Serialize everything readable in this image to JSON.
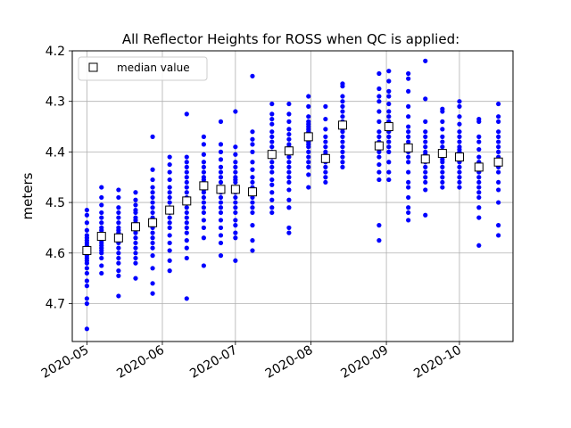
{
  "chart_data": {
    "type": "scatter",
    "title": "All Reflector Heights for ROSS when QC is applied:",
    "ylabel": "meters",
    "xlabel": "",
    "x_range": [
      "2020-04-25",
      "2020-10-23"
    ],
    "ylim": [
      4.2,
      4.775
    ],
    "y_inverted": true,
    "y_ticks": [
      4.2,
      4.3,
      4.4,
      4.5,
      4.6,
      4.7
    ],
    "y_tick_labels": [
      "4.2",
      "4.3",
      "4.4",
      "4.5",
      "4.6",
      "4.7"
    ],
    "x_ticks": [
      "2020-05-01",
      "2020-06-01",
      "2020-07-01",
      "2020-08-01",
      "2020-09-01",
      "2020-10-01"
    ],
    "x_tick_labels": [
      "2020-05",
      "2020-06",
      "2020-07",
      "2020-08",
      "2020-09",
      "2020-10"
    ],
    "grid": true,
    "legend": {
      "placement": "top-left",
      "entries": [
        {
          "label": "median value",
          "marker": "open-square"
        }
      ]
    },
    "colors": {
      "points": "#0000ff",
      "median_marker_edge": "#000000",
      "median_marker_fill": "#ffffff",
      "grid": "#b0b0b0"
    },
    "groups": [
      {
        "date": "2020-05-01",
        "median": 4.595,
        "points": [
          4.515,
          4.525,
          4.54,
          4.555,
          4.565,
          4.57,
          4.575,
          4.58,
          4.585,
          4.59,
          4.595,
          4.6,
          4.605,
          4.61,
          4.615,
          4.62,
          4.63,
          4.64,
          4.655,
          4.665,
          4.69,
          4.7,
          4.75
        ]
      },
      {
        "date": "2020-05-07",
        "median": 4.567,
        "points": [
          4.47,
          4.49,
          4.505,
          4.52,
          4.53,
          4.54,
          4.55,
          4.555,
          4.56,
          4.565,
          4.57,
          4.575,
          4.58,
          4.585,
          4.59,
          4.595,
          4.6,
          4.61,
          4.625,
          4.64
        ]
      },
      {
        "date": "2020-05-14",
        "median": 4.57,
        "points": [
          4.475,
          4.49,
          4.51,
          4.52,
          4.53,
          4.54,
          4.55,
          4.555,
          4.56,
          4.565,
          4.57,
          4.575,
          4.58,
          4.59,
          4.6,
          4.61,
          4.62,
          4.635,
          4.645,
          4.685
        ]
      },
      {
        "date": "2020-05-21",
        "median": 4.548,
        "points": [
          4.48,
          4.495,
          4.505,
          4.515,
          4.52,
          4.53,
          4.535,
          4.54,
          4.545,
          4.55,
          4.555,
          4.56,
          4.57,
          4.58,
          4.59,
          4.6,
          4.61,
          4.62,
          4.65
        ]
      },
      {
        "date": "2020-05-28",
        "median": 4.54,
        "points": [
          4.37,
          4.435,
          4.455,
          4.47,
          4.48,
          4.49,
          4.5,
          4.51,
          4.52,
          4.53,
          4.535,
          4.54,
          4.545,
          4.55,
          4.56,
          4.57,
          4.58,
          4.59,
          4.605,
          4.63,
          4.66,
          4.68
        ]
      },
      {
        "date": "2020-06-04",
        "median": 4.515,
        "points": [
          4.41,
          4.425,
          4.44,
          4.455,
          4.47,
          4.48,
          4.49,
          4.5,
          4.51,
          4.515,
          4.52,
          4.53,
          4.54,
          4.55,
          4.565,
          4.58,
          4.595,
          4.615,
          4.635
        ]
      },
      {
        "date": "2020-06-11",
        "median": 4.497,
        "points": [
          4.325,
          4.41,
          4.42,
          4.43,
          4.44,
          4.45,
          4.46,
          4.47,
          4.48,
          4.49,
          4.5,
          4.51,
          4.52,
          4.53,
          4.54,
          4.55,
          4.56,
          4.575,
          4.59,
          4.61,
          4.69
        ]
      },
      {
        "date": "2020-06-18",
        "median": 4.467,
        "points": [
          4.37,
          4.385,
          4.405,
          4.42,
          4.43,
          4.44,
          4.45,
          4.455,
          4.46,
          4.465,
          4.47,
          4.475,
          4.48,
          4.49,
          4.5,
          4.51,
          4.52,
          4.535,
          4.55,
          4.57,
          4.625
        ]
      },
      {
        "date": "2020-06-25",
        "median": 4.474,
        "points": [
          4.34,
          4.385,
          4.4,
          4.415,
          4.43,
          4.44,
          4.45,
          4.46,
          4.47,
          4.48,
          4.49,
          4.5,
          4.51,
          4.52,
          4.535,
          4.55,
          4.565,
          4.58,
          4.605
        ]
      },
      {
        "date": "2020-07-01",
        "median": 4.474,
        "points": [
          4.32,
          4.39,
          4.405,
          4.42,
          4.43,
          4.44,
          4.45,
          4.455,
          4.46,
          4.47,
          4.48,
          4.49,
          4.5,
          4.51,
          4.52,
          4.535,
          4.545,
          4.56,
          4.57,
          4.615
        ]
      },
      {
        "date": "2020-07-08",
        "median": 4.479,
        "points": [
          4.25,
          4.36,
          4.375,
          4.385,
          4.4,
          4.42,
          4.435,
          4.45,
          4.46,
          4.47,
          4.48,
          4.49,
          4.5,
          4.51,
          4.52,
          4.545,
          4.575,
          4.595
        ]
      },
      {
        "date": "2020-07-16",
        "median": 4.405,
        "points": [
          4.305,
          4.325,
          4.335,
          4.345,
          4.36,
          4.37,
          4.38,
          4.39,
          4.4,
          4.405,
          4.41,
          4.42,
          4.43,
          4.44,
          4.455,
          4.465,
          4.48,
          4.495,
          4.51,
          4.52
        ]
      },
      {
        "date": "2020-07-23",
        "median": 4.398,
        "points": [
          4.305,
          4.325,
          4.34,
          4.355,
          4.365,
          4.375,
          4.385,
          4.39,
          4.395,
          4.4,
          4.41,
          4.42,
          4.43,
          4.44,
          4.45,
          4.46,
          4.475,
          4.495,
          4.51,
          4.55,
          4.56
        ]
      },
      {
        "date": "2020-07-31",
        "median": 4.37,
        "points": [
          4.29,
          4.31,
          4.33,
          4.34,
          4.345,
          4.35,
          4.355,
          4.36,
          4.365,
          4.37,
          4.375,
          4.38,
          4.385,
          4.39,
          4.4,
          4.41,
          4.42,
          4.43,
          4.445,
          4.47
        ]
      },
      {
        "date": "2020-08-07",
        "median": 4.413,
        "points": [
          4.31,
          4.335,
          4.355,
          4.37,
          4.38,
          4.39,
          4.4,
          4.405,
          4.41,
          4.415,
          4.42,
          4.43,
          4.44,
          4.45,
          4.46
        ]
      },
      {
        "date": "2020-08-14",
        "median": 4.347,
        "points": [
          4.265,
          4.27,
          4.29,
          4.3,
          4.31,
          4.32,
          4.33,
          4.34,
          4.345,
          4.35,
          4.355,
          4.36,
          4.37,
          4.38,
          4.39,
          4.4,
          4.41,
          4.42,
          4.43
        ]
      },
      {
        "date": "2020-08-29",
        "median": 4.388,
        "points": [
          4.245,
          4.275,
          4.29,
          4.3,
          4.32,
          4.34,
          4.36,
          4.37,
          4.38,
          4.385,
          4.39,
          4.4,
          4.41,
          4.425,
          4.44,
          4.455,
          4.545,
          4.575
        ]
      },
      {
        "date": "2020-09-02",
        "median": 4.35,
        "points": [
          4.24,
          4.26,
          4.28,
          4.29,
          4.305,
          4.32,
          4.33,
          4.34,
          4.345,
          4.35,
          4.355,
          4.36,
          4.37,
          4.38,
          4.39,
          4.4,
          4.42,
          4.44,
          4.455
        ]
      },
      {
        "date": "2020-09-10",
        "median": 4.392,
        "points": [
          4.245,
          4.255,
          4.28,
          4.31,
          4.33,
          4.35,
          4.36,
          4.37,
          4.38,
          4.39,
          4.4,
          4.41,
          4.42,
          4.44,
          4.46,
          4.47,
          4.49,
          4.51,
          4.52,
          4.535
        ]
      },
      {
        "date": "2020-09-17",
        "median": 4.414,
        "points": [
          4.22,
          4.295,
          4.34,
          4.36,
          4.37,
          4.38,
          4.39,
          4.4,
          4.405,
          4.41,
          4.415,
          4.42,
          4.43,
          4.44,
          4.45,
          4.46,
          4.475,
          4.525
        ]
      },
      {
        "date": "2020-09-24",
        "median": 4.403,
        "points": [
          4.315,
          4.32,
          4.34,
          4.355,
          4.37,
          4.38,
          4.39,
          4.4,
          4.405,
          4.41,
          4.415,
          4.42,
          4.43,
          4.44,
          4.45,
          4.46,
          4.47
        ]
      },
      {
        "date": "2020-10-01",
        "median": 4.41,
        "points": [
          4.3,
          4.31,
          4.33,
          4.345,
          4.36,
          4.37,
          4.38,
          4.39,
          4.395,
          4.4,
          4.41,
          4.42,
          4.43,
          4.44,
          4.45,
          4.46,
          4.47
        ]
      },
      {
        "date": "2020-10-09",
        "median": 4.43,
        "points": [
          4.335,
          4.34,
          4.37,
          4.38,
          4.395,
          4.41,
          4.42,
          4.43,
          4.44,
          4.45,
          4.46,
          4.47,
          4.48,
          4.49,
          4.51,
          4.53,
          4.585
        ]
      },
      {
        "date": "2020-10-17",
        "median": 4.42,
        "points": [
          4.305,
          4.33,
          4.34,
          4.36,
          4.37,
          4.38,
          4.39,
          4.4,
          4.41,
          4.42,
          4.43,
          4.44,
          4.46,
          4.475,
          4.5,
          4.545,
          4.565
        ]
      }
    ]
  }
}
